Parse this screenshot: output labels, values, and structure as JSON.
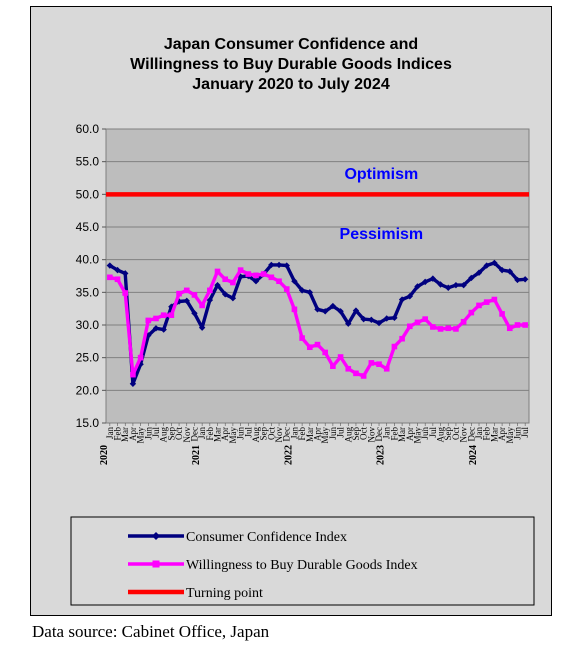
{
  "source_note": "Data source: Cabinet Office, Japan",
  "chart_data": {
    "type": "line",
    "title_lines": [
      "Japan Consumer Confidence and",
      "Willingness to Buy Durable Goods Indices",
      "January 2020 to July 2024"
    ],
    "ylim": [
      15,
      60
    ],
    "y_ticks": [
      "15.0",
      "20.0",
      "25.0",
      "30.0",
      "35.0",
      "40.0",
      "45.0",
      "50.0",
      "55.0",
      "60.0"
    ],
    "grid": true,
    "legend_position": "bottom",
    "x_month_labels": [
      "Jan",
      "Feb",
      "Mar",
      "Apr",
      "May",
      "Jun",
      "Jul",
      "Aug",
      "Sep",
      "Oct",
      "Nov",
      "Dec",
      "Jan",
      "Feb",
      "Mar",
      "Apr",
      "May",
      "Jun",
      "Jul",
      "Aug",
      "Sep",
      "Oct",
      "Nov",
      "Dec",
      "Jan",
      "Feb",
      "Mar",
      "Apr",
      "May",
      "Jun",
      "Jul",
      "Aug",
      "Sep",
      "Oct",
      "Nov",
      "Dec",
      "Jan",
      "Feb",
      "Mar",
      "Apr",
      "May",
      "Jun",
      "Jul",
      "Aug",
      "Sep",
      "Oct",
      "Nov",
      "Dec",
      "Jan",
      "Feb",
      "Mar",
      "Apr",
      "May",
      "Jun",
      "Jul"
    ],
    "x_year_labels": [
      {
        "index": 0,
        "label": "2020"
      },
      {
        "index": 12,
        "label": "2021"
      },
      {
        "index": 24,
        "label": "2022"
      },
      {
        "index": 36,
        "label": "2023"
      },
      {
        "index": 48,
        "label": "2024"
      }
    ],
    "annotations": [
      {
        "text": "Optimism",
        "value": 53.1,
        "month_index": 34
      },
      {
        "text": "Pessimism",
        "value": 43.9,
        "month_index": 34
      }
    ],
    "series": [
      {
        "name": "Consumer Confidence Index",
        "color": "#00007f",
        "values": [
          39.1,
          38.4,
          37.9,
          21.0,
          24.0,
          28.4,
          29.5,
          29.3,
          32.8,
          33.6,
          33.7,
          31.8,
          29.6,
          33.8,
          36.1,
          34.7,
          34.1,
          37.4,
          37.5,
          36.7,
          37.8,
          39.2,
          39.2,
          39.1,
          36.7,
          35.3,
          35.0,
          32.4,
          32.1,
          32.9,
          32.1,
          30.2,
          32.2,
          30.9,
          30.8,
          30.3,
          31.0,
          31.1,
          33.9,
          34.4,
          35.9,
          36.6,
          37.1,
          36.2,
          35.7,
          36.1,
          36.1,
          37.2,
          38.0,
          39.1,
          39.5,
          38.4,
          38.2,
          36.9,
          37.0
        ]
      },
      {
        "name": "Willingness to Buy Durable Goods Index",
        "color": "#ff00ff",
        "values": [
          37.3,
          37.0,
          34.9,
          22.4,
          25.0,
          30.7,
          31.0,
          31.5,
          31.5,
          34.8,
          35.3,
          34.6,
          33.0,
          35.3,
          38.2,
          37.0,
          36.5,
          38.4,
          37.8,
          37.6,
          37.8,
          37.3,
          36.7,
          35.5,
          32.4,
          28.0,
          26.6,
          27.0,
          25.8,
          23.7,
          25.1,
          23.3,
          22.6,
          22.2,
          24.2,
          24.0,
          23.3,
          26.7,
          27.9,
          29.8,
          30.4,
          30.9,
          29.7,
          29.4,
          29.5,
          29.4,
          30.5,
          31.9,
          33.0,
          33.5,
          33.9,
          31.7,
          29.5,
          30.0,
          30.0
        ]
      },
      {
        "name": "Turning point",
        "color": "#ff0000",
        "value": 50.0
      }
    ]
  }
}
